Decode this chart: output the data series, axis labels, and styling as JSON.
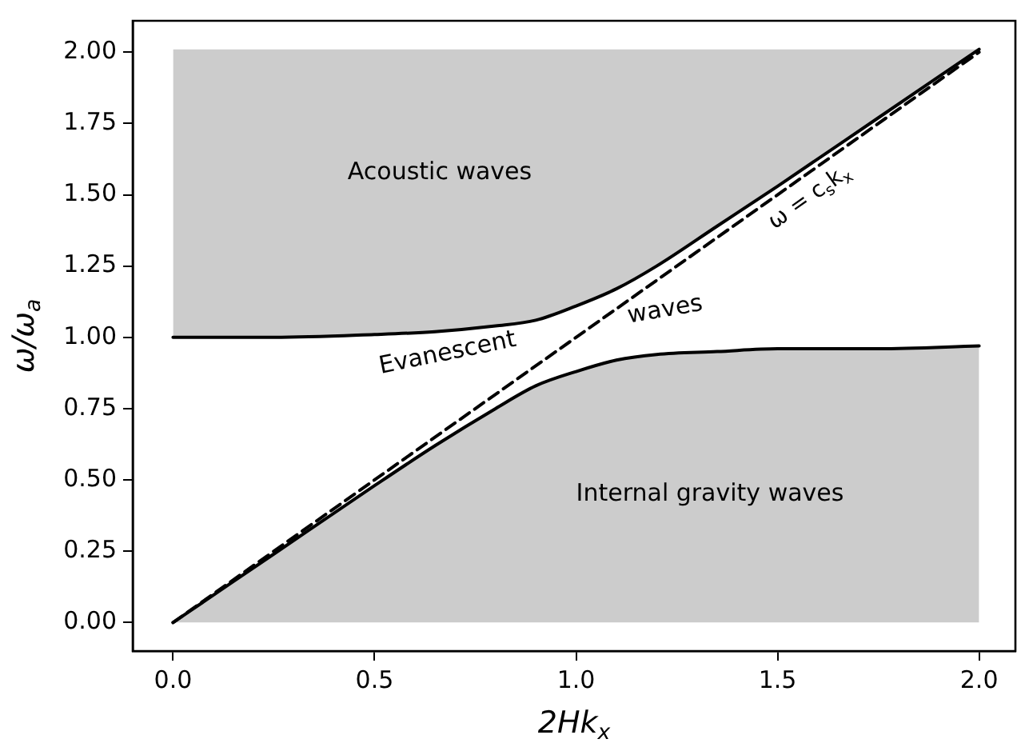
{
  "chart_data": {
    "type": "line",
    "xlabel": "2Hk$_{x}$",
    "ylabel": "ω/ω$_{a}$",
    "x": [
      0,
      0.25,
      0.5,
      0.65,
      0.8,
      0.9,
      1.0,
      1.1,
      1.2,
      1.35,
      1.5,
      1.75,
      2.0
    ],
    "series": [
      {
        "color": "#000000",
        "values": [
          1.0,
          1.0,
          1.01,
          1.02,
          1.04,
          1.06,
          1.11,
          1.17,
          1.25,
          1.39,
          1.53,
          1.77,
          2.01
        ],
        "lower": [
          1.0,
          1.0,
          1.01,
          1.02,
          1.04,
          1.06,
          1.11,
          1.17,
          1.25,
          1.39,
          1.53,
          1.77,
          2.01
        ],
        "upper": [
          2.01,
          2.01,
          2.01,
          2.01,
          2.01,
          2.01,
          2.01,
          2.01,
          2.01,
          2.01,
          2.01,
          2.01,
          2.01
        ]
      },
      {
        "type": "area",
        "color": "#000000",
        "values": [
          0,
          0.24,
          0.48,
          0.62,
          0.75,
          0.83,
          0.88,
          0.92,
          0.94,
          0.95,
          0.96,
          0.96,
          0.97
        ]
      },
      {
        "color": "#000000",
        "line_style": "dashed",
        "x": [
          0,
          2.0
        ],
        "values": [
          0,
          2.0
        ]
      }
    ],
    "annotations": [
      "Acoustic waves",
      "Internal gravity waves",
      "Evanescent",
      "waves",
      {
        "text": "ω = c$_{s}$k$_{x}$",
        "x": 1.55,
        "y": 1.55
      }
    ],
    "xlim": [
      -0.1,
      2.09
    ],
    "ylim": [
      -0.1,
      2.11
    ],
    "xticks": [
      {
        "value": 0,
        "label": "0.0"
      },
      {
        "value": 0.5,
        "label": "0.5"
      },
      {
        "value": 1,
        "label": "1.0"
      },
      {
        "value": 1.5,
        "label": "1.5"
      },
      {
        "value": 2,
        "label": "2.0"
      }
    ],
    "yticks": [
      {
        "value": 0,
        "label": "0.00"
      },
      {
        "value": 0.25,
        "label": "0.25"
      },
      {
        "value": 0.5,
        "label": "0.50"
      },
      {
        "value": 0.75,
        "label": "0.75"
      },
      {
        "value": 1,
        "label": "1.00"
      },
      {
        "value": 1.25,
        "label": "1.25"
      },
      {
        "value": 1.5,
        "label": "1.50"
      },
      {
        "value": 1.75,
        "label": "1.75"
      },
      {
        "value": 2,
        "label": "2.00"
      }
    ],
    "grid": false,
    "legend": false,
    "marker": "none"
  }
}
